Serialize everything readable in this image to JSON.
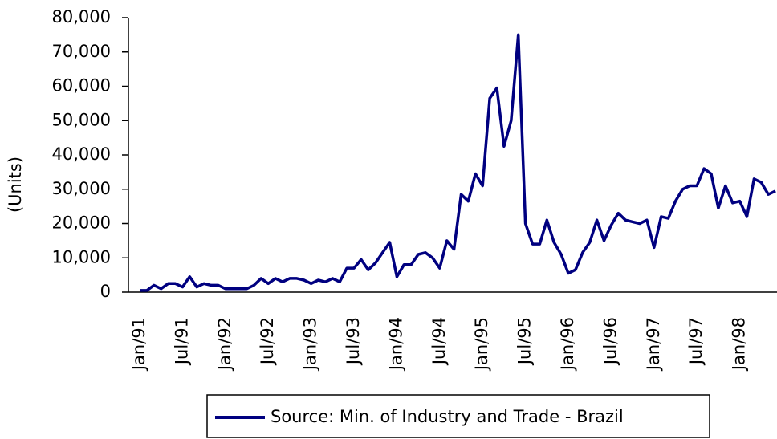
{
  "chart_data": {
    "type": "line",
    "y_label": "(Units)",
    "categories": [
      "Jan/91",
      null,
      null,
      null,
      null,
      null,
      "Jul/91",
      null,
      null,
      null,
      null,
      null,
      "Jan/92",
      null,
      null,
      null,
      null,
      null,
      "Jul/92",
      null,
      null,
      null,
      null,
      null,
      "Jan/93",
      null,
      null,
      null,
      null,
      null,
      "Jul/93",
      null,
      null,
      null,
      null,
      null,
      "Jan/94",
      null,
      null,
      null,
      null,
      null,
      "Jul/94",
      null,
      null,
      null,
      null,
      null,
      "Jan/95",
      null,
      null,
      null,
      null,
      null,
      "Jul/95",
      null,
      null,
      null,
      null,
      null,
      "Jan/96",
      null,
      null,
      null,
      null,
      null,
      "Jul/96",
      null,
      null,
      null,
      null,
      null,
      "Jan/97",
      null,
      null,
      null,
      null,
      null,
      "Jul/97",
      null,
      null,
      null,
      null,
      null,
      "Jan/98",
      null,
      null,
      null,
      null,
      null
    ],
    "series": [
      {
        "name": "Source: Min. of Industry and Trade - Brazil",
        "color": "#000080",
        "values": [
          500,
          500,
          2000,
          1000,
          2500,
          2500,
          1500,
          4500,
          1500,
          2500,
          2000,
          2000,
          1000,
          1000,
          1000,
          1000,
          2000,
          4000,
          2500,
          4000,
          3000,
          4000,
          4000,
          3500,
          2500,
          3500,
          3000,
          4000,
          3000,
          7000,
          7000,
          9500,
          6500,
          8500,
          11500,
          14500,
          4500,
          8000,
          8000,
          11000,
          11500,
          10000,
          7000,
          15000,
          12500,
          28500,
          26500,
          34500,
          31000,
          56500,
          59500,
          42500,
          50000,
          75000,
          20000,
          14000,
          14000,
          21000,
          14500,
          11000,
          5500,
          6500,
          11500,
          14500,
          21000,
          15000,
          19500,
          23000,
          21000,
          20500,
          20000,
          21000,
          13000,
          22000,
          21500,
          26500,
          30000,
          31000,
          31000,
          36000,
          34500,
          24500,
          31000,
          26000,
          26500,
          22000,
          33000,
          32000,
          28500,
          29500
        ]
      }
    ],
    "ylim": [
      0,
      80000
    ],
    "yticks": [
      0,
      {
        "value": 10000,
        "label": "10,000"
      },
      {
        "value": 20000,
        "label": "20,000"
      },
      {
        "value": 30000,
        "label": "30,000"
      },
      {
        "value": 40000,
        "label": "40,000"
      },
      {
        "value": 50000,
        "label": "50,000"
      },
      {
        "value": 60000,
        "label": "60,000"
      },
      {
        "value": 70000,
        "label": "70,000"
      },
      {
        "value": 80000,
        "label": "80,000"
      }
    ],
    "legend": "bottom"
  }
}
